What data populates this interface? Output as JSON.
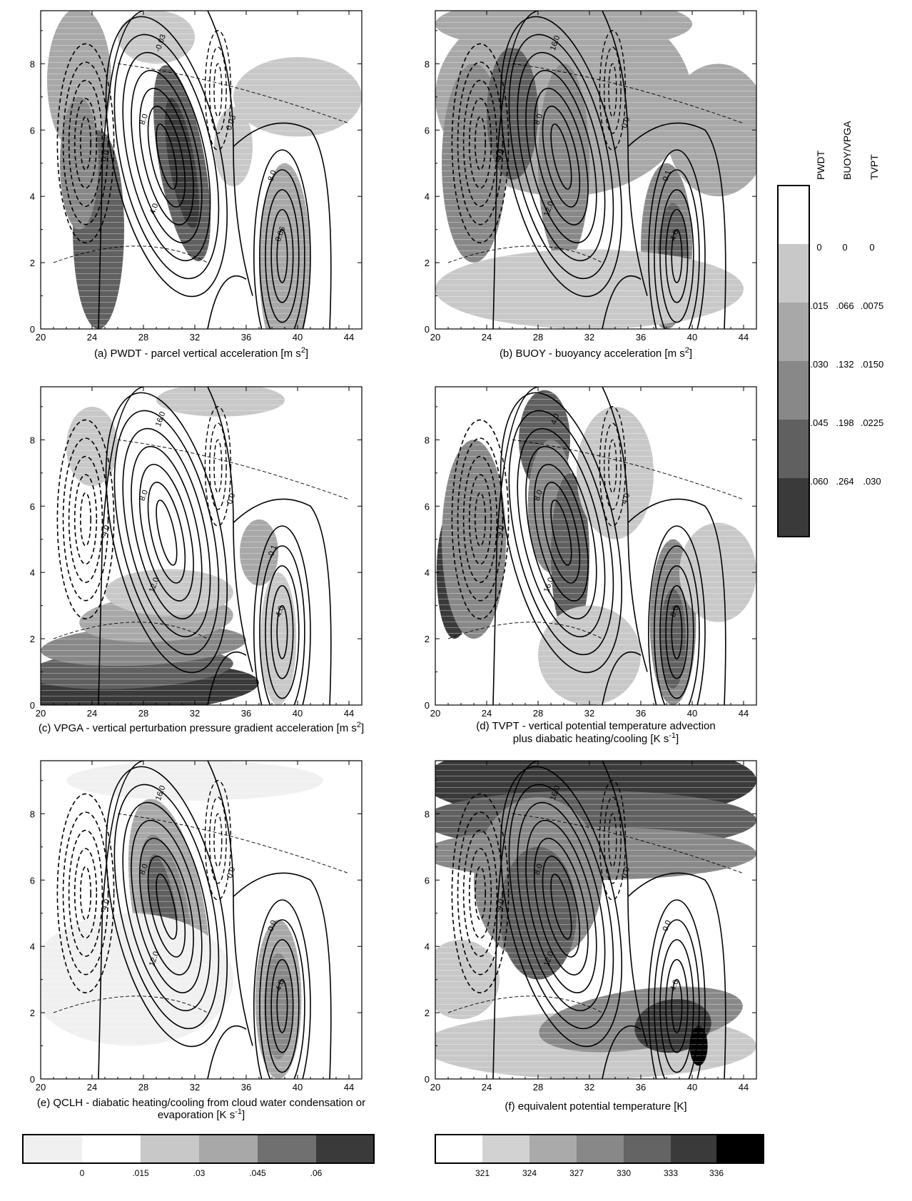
{
  "figure": {
    "x_ticks": [
      "20",
      "24",
      "28",
      "32",
      "36",
      "40",
      "44"
    ],
    "y_ticks": [
      "0",
      "2",
      "4",
      "6",
      "8"
    ],
    "colors": {
      "shade_light": "#c8c8c8",
      "shade_2": "#a8a8a8",
      "shade_3": "#888888",
      "shade_4": "#606060",
      "shade_5": "#3a3a3a",
      "shade_6": "#000000",
      "light_bg": "#f0f0f0"
    }
  },
  "chart_data": [
    {
      "type": "heatmap",
      "panel": "a",
      "caption": "(a) PWDT - parcel vertical acceleration [m s",
      "caption_sup": "2",
      "caption_end": "]",
      "xlim": [
        20,
        45
      ],
      "ylim": [
        0,
        9.6
      ],
      "contour_labels": [
        "0.0",
        "4.0",
        "8.0",
        "-0.03",
        "-0.06",
        "0.03",
        "8.0"
      ]
    },
    {
      "type": "heatmap",
      "panel": "b",
      "caption": "(b) BUOY - buoyancy acceleration [m s",
      "caption_sup": "2",
      "caption_end": "]",
      "xlim": [
        20,
        45
      ],
      "ylim": [
        0,
        9.6
      ],
      "contour_labels": [
        "-4.0",
        "12.0",
        "8.0",
        "16.0",
        "4.0",
        "0.0",
        "0.1",
        "-0.3"
      ]
    },
    {
      "type": "heatmap",
      "panel": "c",
      "caption": "(c) VPGA - vertical perturbation pressure gradient acceleration [m s",
      "caption_sup": "2",
      "caption_end": "]",
      "xlim": [
        20,
        45
      ],
      "ylim": [
        0,
        9.6
      ],
      "contour_labels": [
        "-4.0",
        "12.0",
        "8.0",
        "16.0",
        "4.0",
        "0.0",
        "-0.1"
      ]
    },
    {
      "type": "heatmap",
      "panel": "d",
      "caption": "(d) TVPT - vertical potential temperature advection",
      "caption_line2": "plus diabatic heating/cooling [K s",
      "caption_sup": "-1",
      "caption_end": "]",
      "xlim": [
        20,
        45
      ],
      "ylim": [
        0,
        9.6
      ],
      "contour_labels": [
        "-4.0",
        "16.0",
        "8.0",
        "4.0",
        "0.0",
        "4.0"
      ]
    },
    {
      "type": "heatmap",
      "panel": "e",
      "caption": "(e) QCLH - diabatic heating/cooling from cloud water condensation or",
      "caption_line2": "evaporation [K s",
      "caption_sup": "-1",
      "caption_end": "]",
      "xlim": [
        20,
        45
      ],
      "ylim": [
        0,
        9.6
      ],
      "contour_labels": [
        "-4.0",
        "12.0",
        "8.0",
        "16.0",
        "4.0",
        "0.0",
        "0.0"
      ]
    },
    {
      "type": "heatmap",
      "panel": "f",
      "caption": "(f) equivalent potential temperature [K]",
      "xlim": [
        20,
        45
      ],
      "ylim": [
        0,
        9.6
      ],
      "contour_labels": [
        "-4.0",
        "12.0",
        "8.0",
        "16.0",
        "4.0",
        "0.0",
        "0.0"
      ]
    }
  ],
  "legend_right": {
    "headers": [
      "PWDT",
      "BUOY/VPGA",
      "TVPT"
    ],
    "rows": [
      [
        "0",
        "0",
        "0"
      ],
      [
        ".015",
        ".066",
        ".0075"
      ],
      [
        ".030",
        ".132",
        ".0150"
      ],
      [
        ".045",
        ".198",
        ".0225"
      ],
      [
        ".060",
        ".264",
        ".030"
      ]
    ]
  },
  "colorbar_bottom_left": {
    "labels": [
      "0",
      ".015",
      ".03",
      ".045",
      ".06"
    ]
  },
  "colorbar_bottom_right": {
    "labels": [
      "321",
      "324",
      "327",
      "330",
      "333",
      "336"
    ]
  }
}
